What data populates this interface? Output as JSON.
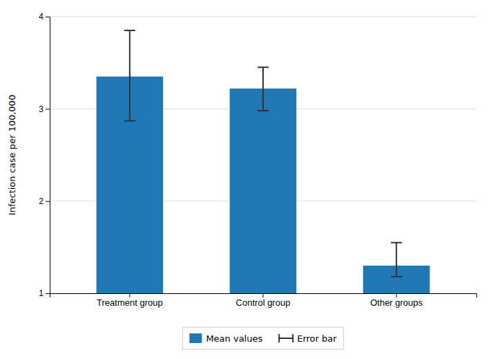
{
  "chart_data": {
    "type": "bar",
    "categories": [
      "Treatment group",
      "Control group",
      "Other groups"
    ],
    "series": [
      {
        "name": "Mean values",
        "values": [
          3.35,
          3.22,
          1.3
        ],
        "error_lower": [
          0.48,
          0.24,
          0.12
        ],
        "error_upper": [
          0.5,
          0.23,
          0.25
        ],
        "error_name": "Error bar"
      }
    ],
    "ylabel": "Infection case per 100,000",
    "ylim": [
      1.0,
      4.0
    ],
    "yticks": [
      1,
      2,
      3,
      4
    ],
    "grid": true,
    "legend": "bottom"
  }
}
